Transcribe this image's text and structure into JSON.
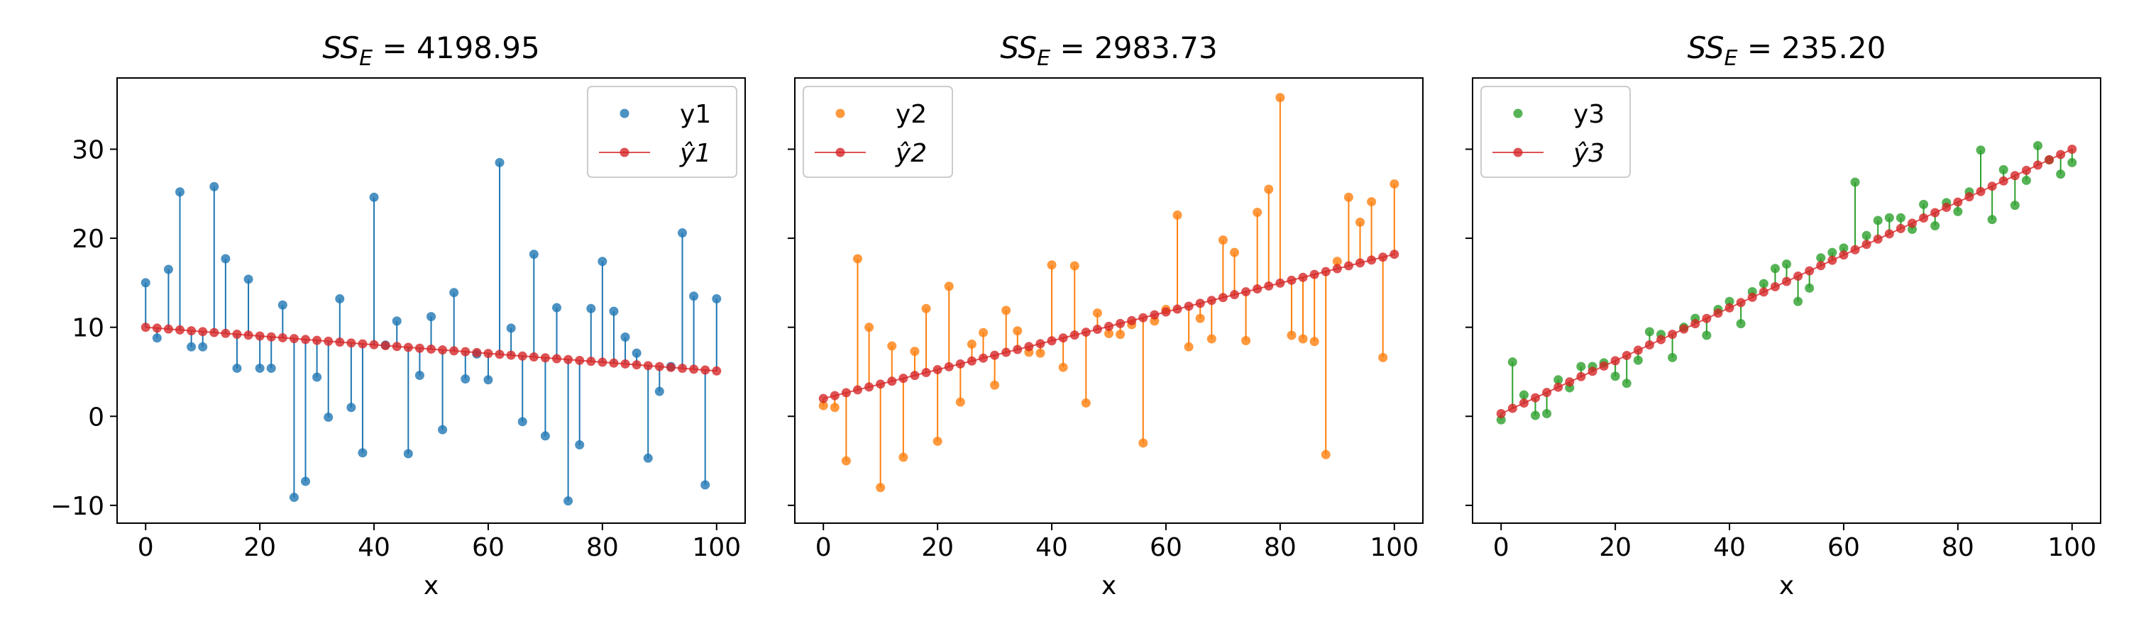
{
  "chart_data": [
    {
      "type": "scatter",
      "title_prefix": "SS",
      "title_sub": "E",
      "title_value": "4198.95",
      "xlabel": "x",
      "xlim": [
        -5,
        105
      ],
      "ylim": [
        -12,
        38
      ],
      "xticks": [
        0,
        20,
        40,
        60,
        80,
        100
      ],
      "yticks": [
        -10,
        0,
        10,
        20,
        30
      ],
      "show_yticklabels": true,
      "legend": "top-right",
      "color": "#1f77b4",
      "fit_color": "#d62728",
      "series": [
        {
          "name": "y1",
          "kind": "observed"
        },
        {
          "name": "ŷ1",
          "kind": "fitted"
        }
      ],
      "fit_line": [
        10.0,
        5.1
      ],
      "x": [
        0,
        2,
        4,
        6,
        8,
        10,
        12,
        14,
        16,
        18,
        20,
        22,
        24,
        26,
        28,
        30,
        32,
        34,
        36,
        38,
        40,
        42,
        44,
        46,
        48,
        50,
        52,
        54,
        56,
        58,
        60,
        62,
        64,
        66,
        68,
        70,
        72,
        74,
        76,
        78,
        80,
        82,
        84,
        86,
        88,
        90,
        92,
        94,
        96,
        98,
        100
      ],
      "y": [
        15.0,
        8.8,
        16.5,
        25.2,
        7.8,
        7.8,
        25.8,
        17.7,
        5.4,
        15.4,
        5.4,
        5.4,
        12.5,
        -9.1,
        -7.3,
        4.4,
        -0.1,
        13.2,
        1.0,
        -4.1,
        24.6,
        8.0,
        10.7,
        -4.2,
        4.6,
        11.2,
        -1.5,
        13.9,
        4.2,
        7.0,
        4.1,
        28.5,
        9.9,
        -0.6,
        18.2,
        -2.2,
        12.2,
        -9.5,
        -3.2,
        12.1,
        17.4,
        11.8,
        8.9,
        7.1,
        -4.7,
        2.8,
        5.6,
        20.6,
        13.5,
        -7.7,
        13.2
      ]
    },
    {
      "type": "scatter",
      "title_prefix": "SS",
      "title_sub": "E",
      "title_value": "2983.73",
      "xlabel": "x",
      "xlim": [
        -5,
        105
      ],
      "ylim": [
        -12,
        38
      ],
      "xticks": [
        0,
        20,
        40,
        60,
        80,
        100
      ],
      "yticks": [
        -10,
        0,
        10,
        20,
        30
      ],
      "show_yticklabels": false,
      "legend": "top-left",
      "color": "#ff7f0e",
      "fit_color": "#d62728",
      "series": [
        {
          "name": "y2",
          "kind": "observed"
        },
        {
          "name": "ŷ2",
          "kind": "fitted"
        }
      ],
      "fit_line": [
        2.0,
        18.2
      ],
      "x": [
        0,
        2,
        4,
        6,
        8,
        10,
        12,
        14,
        16,
        18,
        20,
        22,
        24,
        26,
        28,
        30,
        32,
        34,
        36,
        38,
        40,
        42,
        44,
        46,
        48,
        50,
        52,
        54,
        56,
        58,
        60,
        62,
        64,
        66,
        68,
        70,
        72,
        74,
        76,
        78,
        80,
        82,
        84,
        86,
        88,
        90,
        92,
        94,
        96,
        98,
        100
      ],
      "y": [
        1.2,
        1.0,
        -5.0,
        17.7,
        10.0,
        -8.0,
        7.9,
        -4.6,
        7.3,
        12.1,
        -2.8,
        14.6,
        1.6,
        8.1,
        9.4,
        3.5,
        11.9,
        9.6,
        7.2,
        7.1,
        17.0,
        5.5,
        16.9,
        1.5,
        11.6,
        9.3,
        9.2,
        10.3,
        -3.0,
        10.7,
        12.0,
        22.6,
        7.8,
        11.0,
        8.7,
        19.8,
        18.4,
        8.5,
        22.9,
        25.5,
        35.8,
        9.1,
        8.7,
        8.4,
        -4.3,
        17.4,
        24.6,
        21.8,
        24.1,
        6.6,
        26.1
      ]
    },
    {
      "type": "scatter",
      "title_prefix": "SS",
      "title_sub": "E",
      "title_value": "235.20",
      "xlabel": "x",
      "xlim": [
        -5,
        105
      ],
      "ylim": [
        -12,
        38
      ],
      "xticks": [
        0,
        20,
        40,
        60,
        80,
        100
      ],
      "yticks": [
        -10,
        0,
        10,
        20,
        30
      ],
      "show_yticklabels": false,
      "legend": "top-left",
      "color": "#2ca02c",
      "fit_color": "#d62728",
      "series": [
        {
          "name": "y3",
          "kind": "observed"
        },
        {
          "name": "ŷ3",
          "kind": "fitted"
        }
      ],
      "fit_line": [
        0.3,
        30.0
      ],
      "x": [
        0,
        2,
        4,
        6,
        8,
        10,
        12,
        14,
        16,
        18,
        20,
        22,
        24,
        26,
        28,
        30,
        32,
        34,
        36,
        38,
        40,
        42,
        44,
        46,
        48,
        50,
        52,
        54,
        56,
        58,
        60,
        62,
        64,
        66,
        68,
        70,
        72,
        74,
        76,
        78,
        80,
        82,
        84,
        86,
        88,
        90,
        92,
        94,
        96,
        98,
        100
      ],
      "y": [
        -0.4,
        6.1,
        2.4,
        0.1,
        0.3,
        4.1,
        3.2,
        5.6,
        5.6,
        6.0,
        4.5,
        3.7,
        6.3,
        9.5,
        9.2,
        6.6,
        10.0,
        11.0,
        9.1,
        12.0,
        12.9,
        10.4,
        14.0,
        14.9,
        16.6,
        17.1,
        12.9,
        14.4,
        17.8,
        18.4,
        18.9,
        26.3,
        20.3,
        22.0,
        22.3,
        22.3,
        21.0,
        23.8,
        21.4,
        24.0,
        23.0,
        25.2,
        29.9,
        22.1,
        27.7,
        23.7,
        26.5,
        30.4,
        28.8,
        27.2,
        28.5
      ]
    }
  ]
}
